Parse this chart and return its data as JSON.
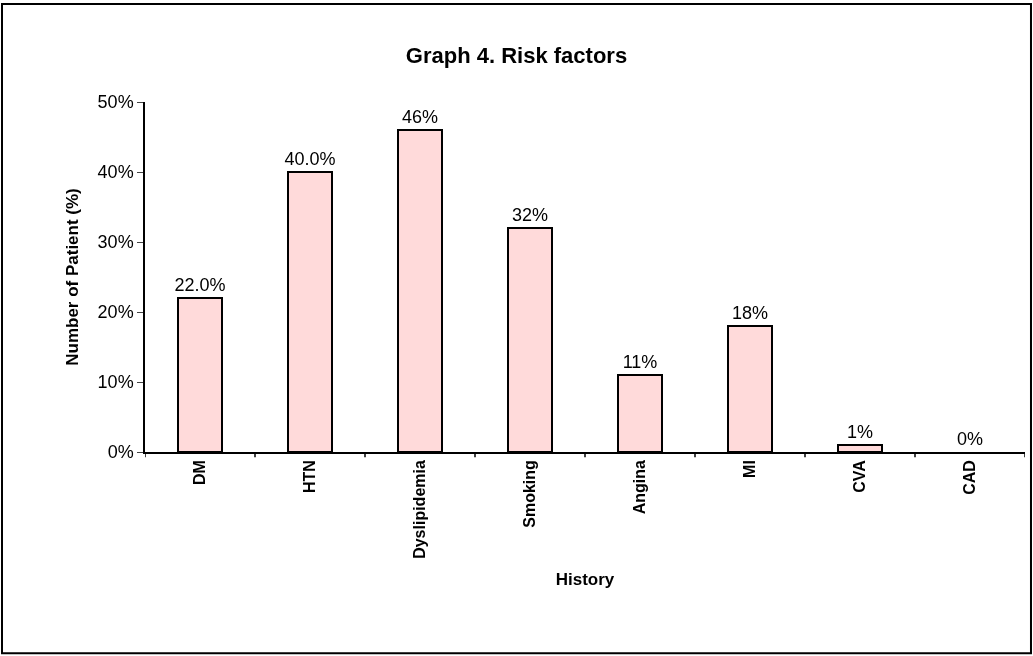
{
  "chart_data": {
    "type": "bar",
    "title": "Graph 4. Risk factors",
    "xlabel": "History",
    "ylabel": "Number of Patient (%)",
    "categories": [
      "DM",
      "HTN",
      "Dyslipidemia",
      "Smoking",
      "Angina",
      "MI",
      "CVA",
      "CAD"
    ],
    "values": [
      22,
      40,
      46,
      32,
      11,
      18,
      1,
      0
    ],
    "value_labels": [
      "22.0%",
      "40.0%",
      "46%",
      "32%",
      "11%",
      "18%",
      "1%",
      "0%"
    ],
    "color": "#ffdada",
    "ylim": [
      0,
      50
    ],
    "yticks": [
      {
        "value": 0,
        "label": "0%"
      },
      {
        "value": 10,
        "label": "10%"
      },
      {
        "value": 20,
        "label": "20%"
      },
      {
        "value": 30,
        "label": "30%"
      },
      {
        "value": 40,
        "label": "40%"
      },
      {
        "value": 50,
        "label": "50%"
      }
    ],
    "legend": false
  }
}
